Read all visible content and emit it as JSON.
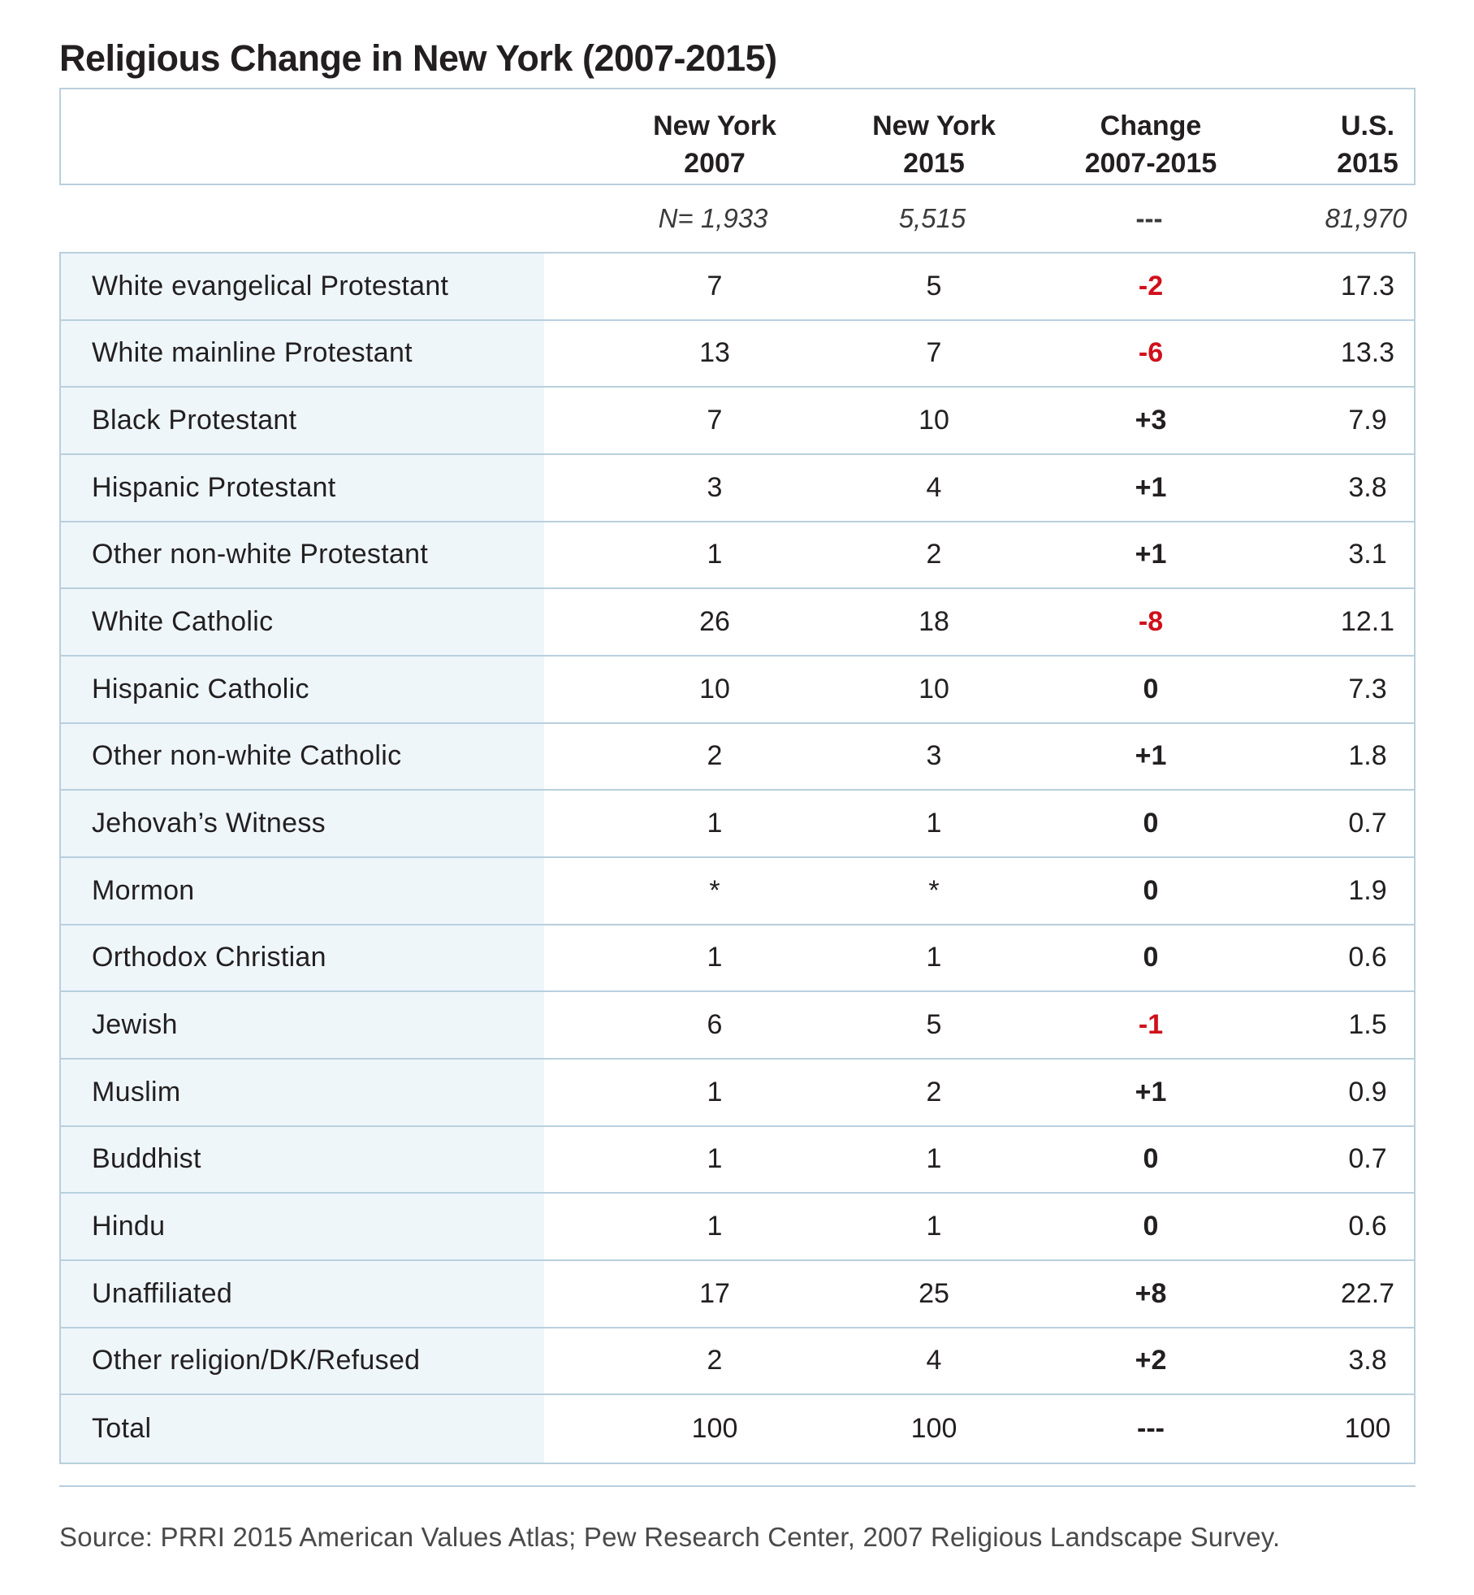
{
  "chart_data": {
    "type": "table",
    "title": "Religious Change in New York (2007-2015)",
    "columns": [
      {
        "line1": "New York",
        "line2": "2007"
      },
      {
        "line1": "New York",
        "line2": "2015"
      },
      {
        "line1": "Change",
        "line2": "2007-2015"
      },
      {
        "line1": "U.S.",
        "line2": "2015"
      }
    ],
    "sample_sizes": [
      "N= 1,933",
      "5,515",
      "---",
      "81,970"
    ],
    "rows": [
      {
        "label": "White evangelical Protestant",
        "ny2007": "7",
        "ny2015": "5",
        "change": "-2",
        "us2015": "17.3"
      },
      {
        "label": "White mainline Protestant",
        "ny2007": "13",
        "ny2015": "7",
        "change": "-6",
        "us2015": "13.3"
      },
      {
        "label": "Black Protestant",
        "ny2007": "7",
        "ny2015": "10",
        "change": "+3",
        "us2015": "7.9"
      },
      {
        "label": "Hispanic Protestant",
        "ny2007": "3",
        "ny2015": "4",
        "change": "+1",
        "us2015": "3.8"
      },
      {
        "label": "Other non-white Protestant",
        "ny2007": "1",
        "ny2015": "2",
        "change": "+1",
        "us2015": "3.1"
      },
      {
        "label": "White Catholic",
        "ny2007": "26",
        "ny2015": "18",
        "change": "-8",
        "us2015": "12.1"
      },
      {
        "label": "Hispanic Catholic",
        "ny2007": "10",
        "ny2015": "10",
        "change": "0",
        "us2015": "7.3"
      },
      {
        "label": "Other non-white Catholic",
        "ny2007": "2",
        "ny2015": "3",
        "change": "+1",
        "us2015": "1.8"
      },
      {
        "label": "Jehovah’s Witness",
        "ny2007": "1",
        "ny2015": "1",
        "change": "0",
        "us2015": "0.7"
      },
      {
        "label": "Mormon",
        "ny2007": "*",
        "ny2015": "*",
        "change": "0",
        "us2015": "1.9"
      },
      {
        "label": "Orthodox Christian",
        "ny2007": "1",
        "ny2015": "1",
        "change": "0",
        "us2015": "0.6"
      },
      {
        "label": "Jewish",
        "ny2007": "6",
        "ny2015": "5",
        "change": "-1",
        "us2015": "1.5"
      },
      {
        "label": "Muslim",
        "ny2007": "1",
        "ny2015": "2",
        "change": "+1",
        "us2015": "0.9"
      },
      {
        "label": "Buddhist",
        "ny2007": "1",
        "ny2015": "1",
        "change": "0",
        "us2015": "0.7"
      },
      {
        "label": "Hindu",
        "ny2007": "1",
        "ny2015": "1",
        "change": "0",
        "us2015": "0.6"
      },
      {
        "label": "Unaffiliated",
        "ny2007": "17",
        "ny2015": "25",
        "change": "+8",
        "us2015": "22.7"
      },
      {
        "label": "Other religion/DK/Refused",
        "ny2007": "2",
        "ny2015": "4",
        "change": "+2",
        "us2015": "3.8"
      },
      {
        "label": "Total",
        "ny2007": "100",
        "ny2015": "100",
        "change": "---",
        "us2015": "100"
      }
    ],
    "negative_color": "#d0101b",
    "label_column_bg": "#eef6fa",
    "border_color": "#b9cfdd"
  },
  "source": "Source: PRRI 2015 American Values Atlas; Pew Research Center, 2007 Religious Landscape Survey."
}
